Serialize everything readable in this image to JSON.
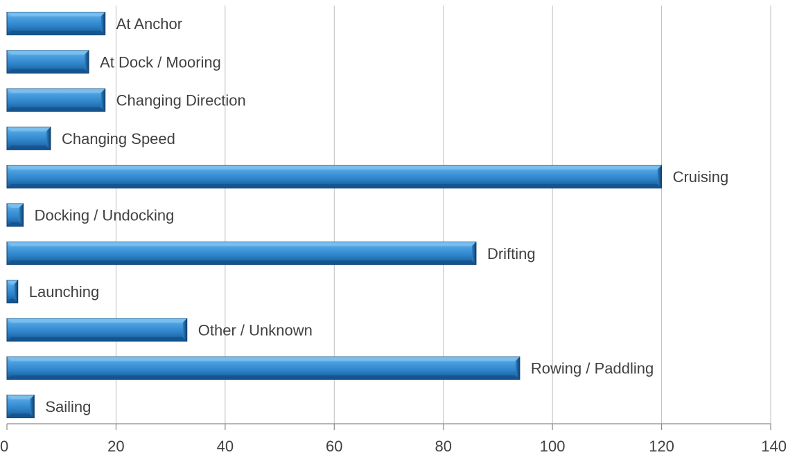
{
  "chart_data": {
    "type": "bar",
    "orientation": "horizontal",
    "categories": [
      "At Anchor",
      "At Dock / Mooring",
      "Changing Direction",
      "Changing Speed",
      "Cruising",
      "Docking / Undocking",
      "Drifting",
      "Launching",
      "Other / Unknown",
      "Rowing / Paddling",
      "Sailing"
    ],
    "values": [
      18,
      15,
      18,
      8,
      120,
      3,
      86,
      2,
      33,
      94,
      5
    ],
    "xlim": [
      0,
      140
    ],
    "xticks": [
      0,
      20,
      40,
      60,
      80,
      100,
      120,
      140
    ],
    "grid": "vertical",
    "legend": "none",
    "title": "",
    "xlabel": "",
    "ylabel": "",
    "colors": {
      "bar_light": "#5aaee8",
      "bar_mid": "#2e83c9",
      "bar_dark": "#14548e",
      "bar_bevel_light": "#7fc2ef",
      "bar_edge": "#0f3f6b",
      "grid": "#bfbfbf",
      "axis": "#8c8c8c",
      "text": "#404040"
    }
  }
}
